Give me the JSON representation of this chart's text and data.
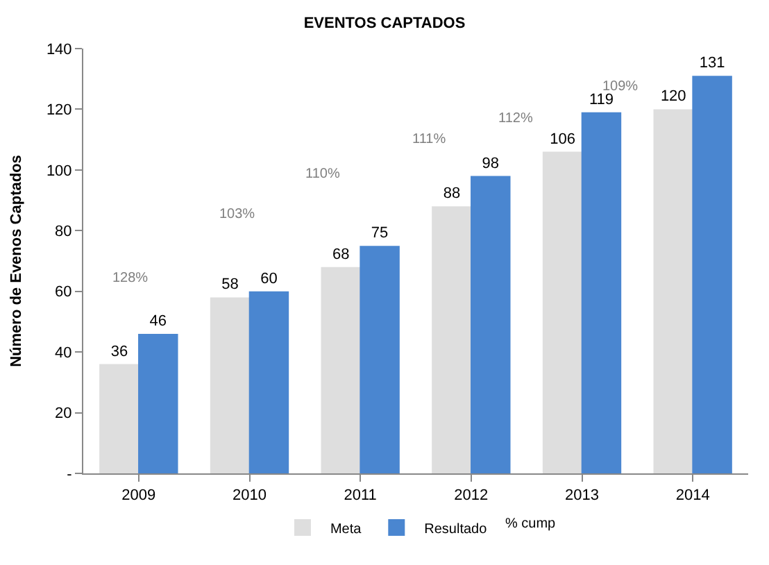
{
  "chart_data": {
    "type": "bar",
    "title": "EVENTOS CAPTADOS",
    "ylabel": "Número de Evenos Captados",
    "categories": [
      "2009",
      "2010",
      "2011",
      "2012",
      "2013",
      "2014"
    ],
    "series": [
      {
        "name": "Meta",
        "color": "#dedede",
        "values": [
          36,
          58,
          68,
          88,
          106,
          120
        ],
        "value_labels": [
          "36",
          "58",
          "68",
          "88",
          "106",
          "120"
        ]
      },
      {
        "name": "Resultado",
        "color": "#4a86d0",
        "values": [
          46,
          60,
          75,
          98,
          119,
          131
        ],
        "value_labels": [
          "46",
          "60",
          "75",
          "98",
          "119",
          "131"
        ]
      }
    ],
    "annotations": [
      "128%",
      "103%",
      "110%",
      "111%",
      "112%",
      "109%",
      "% cump"
    ],
    "ylim": [
      0,
      140
    ],
    "yticks": [
      {
        "value": 0,
        "label": "-"
      },
      20,
      40,
      60,
      80,
      100,
      120,
      140
    ],
    "legend": "bottom"
  }
}
